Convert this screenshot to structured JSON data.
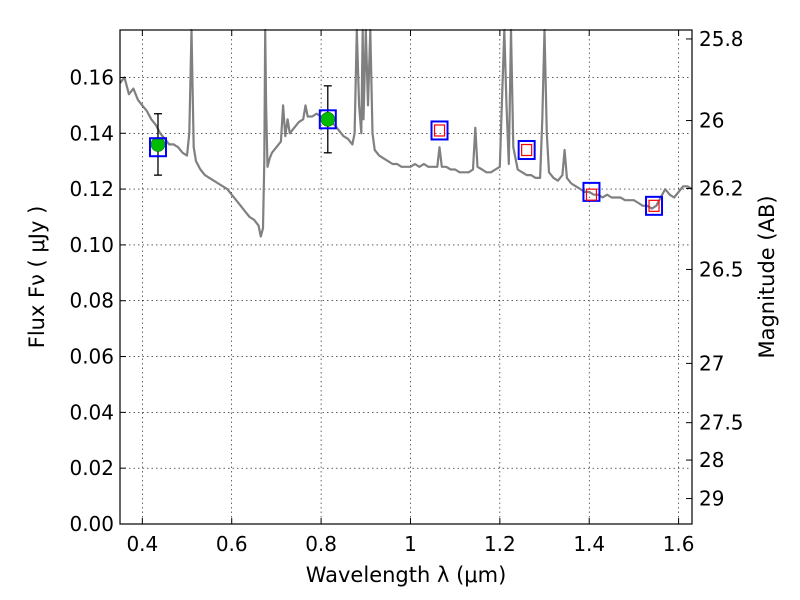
{
  "chart_data": {
    "type": "line",
    "title": "",
    "xlabel": "Wavelength  λ (μm)",
    "ylabel": "Flux  Fν  ( μJy )",
    "y2label": "Magnitude (AB)",
    "xlim": [
      0.35,
      1.63
    ],
    "ylim": [
      0.0,
      0.177
    ],
    "grid": true,
    "xticks": [
      "0.4",
      "0.6",
      "0.8",
      "1",
      "1.2",
      "1.4",
      "1.6"
    ],
    "xtick_values": [
      0.4,
      0.6,
      0.8,
      1.0,
      1.2,
      1.4,
      1.6
    ],
    "yticks": [
      "0.00",
      "0.02",
      "0.04",
      "0.06",
      "0.08",
      "0.10",
      "0.12",
      "0.14",
      "0.16"
    ],
    "ytick_values": [
      0.0,
      0.02,
      0.04,
      0.06,
      0.08,
      0.1,
      0.12,
      0.14,
      0.16
    ],
    "y2ticks": [
      {
        "label": "25.8",
        "value": 25.8
      },
      {
        "label": "26",
        "value": 26.0
      },
      {
        "label": "26.2",
        "value": 26.2
      },
      {
        "label": "26.5",
        "value": 26.5
      },
      {
        "label": "27",
        "value": 27.0
      },
      {
        "label": "27.5",
        "value": 27.5
      },
      {
        "label": "28",
        "value": 28.0
      },
      {
        "label": "29",
        "value": 29.0
      }
    ],
    "series": [
      {
        "kind": "spectrum",
        "color": "#808080",
        "x": [
          0.35,
          0.36,
          0.37,
          0.38,
          0.39,
          0.4,
          0.41,
          0.42,
          0.43,
          0.44,
          0.45,
          0.46,
          0.47,
          0.48,
          0.49,
          0.5,
          0.505,
          0.51,
          0.515,
          0.52,
          0.53,
          0.54,
          0.55,
          0.56,
          0.57,
          0.58,
          0.59,
          0.6,
          0.61,
          0.62,
          0.63,
          0.64,
          0.65,
          0.66,
          0.665,
          0.67,
          0.673,
          0.675,
          0.677,
          0.68,
          0.685,
          0.69,
          0.7,
          0.71,
          0.715,
          0.72,
          0.725,
          0.73,
          0.74,
          0.75,
          0.76,
          0.765,
          0.77,
          0.78,
          0.79,
          0.8,
          0.81,
          0.82,
          0.83,
          0.84,
          0.85,
          0.86,
          0.87,
          0.875,
          0.88,
          0.885,
          0.89,
          0.893,
          0.895,
          0.9,
          0.905,
          0.91,
          0.915,
          0.92,
          0.93,
          0.94,
          0.95,
          0.96,
          0.97,
          0.98,
          0.99,
          1.0,
          1.01,
          1.02,
          1.03,
          1.04,
          1.05,
          1.06,
          1.065,
          1.07,
          1.08,
          1.09,
          1.1,
          1.11,
          1.12,
          1.13,
          1.14,
          1.145,
          1.15,
          1.16,
          1.17,
          1.18,
          1.19,
          1.2,
          1.21,
          1.215,
          1.22,
          1.225,
          1.23,
          1.24,
          1.25,
          1.26,
          1.27,
          1.28,
          1.29,
          1.295,
          1.3,
          1.305,
          1.31,
          1.32,
          1.33,
          1.34,
          1.345,
          1.35,
          1.36,
          1.37,
          1.38,
          1.39,
          1.4,
          1.41,
          1.42,
          1.43,
          1.44,
          1.45,
          1.46,
          1.47,
          1.48,
          1.49,
          1.5,
          1.51,
          1.52,
          1.53,
          1.54,
          1.55,
          1.56,
          1.57,
          1.58,
          1.59,
          1.6,
          1.61,
          1.62,
          1.63
        ],
        "y": [
          0.158,
          0.16,
          0.154,
          0.156,
          0.152,
          0.15,
          0.148,
          0.145,
          0.143,
          0.14,
          0.138,
          0.136,
          0.136,
          0.135,
          0.133,
          0.132,
          0.14,
          0.177,
          0.135,
          0.13,
          0.127,
          0.125,
          0.124,
          0.123,
          0.122,
          0.121,
          0.12,
          0.118,
          0.116,
          0.114,
          0.112,
          0.11,
          0.109,
          0.107,
          0.103,
          0.106,
          0.13,
          0.177,
          0.15,
          0.128,
          0.131,
          0.133,
          0.135,
          0.137,
          0.15,
          0.139,
          0.145,
          0.14,
          0.142,
          0.144,
          0.145,
          0.15,
          0.146,
          0.146,
          0.147,
          0.146,
          0.145,
          0.144,
          0.143,
          0.141,
          0.139,
          0.138,
          0.136,
          0.14,
          0.177,
          0.15,
          0.14,
          0.177,
          0.145,
          0.177,
          0.15,
          0.177,
          0.14,
          0.134,
          0.132,
          0.131,
          0.13,
          0.129,
          0.129,
          0.128,
          0.128,
          0.128,
          0.129,
          0.128,
          0.129,
          0.128,
          0.128,
          0.128,
          0.135,
          0.128,
          0.128,
          0.127,
          0.127,
          0.126,
          0.126,
          0.126,
          0.127,
          0.142,
          0.128,
          0.127,
          0.126,
          0.126,
          0.127,
          0.128,
          0.177,
          0.15,
          0.129,
          0.177,
          0.135,
          0.127,
          0.126,
          0.125,
          0.125,
          0.124,
          0.124,
          0.145,
          0.177,
          0.14,
          0.126,
          0.124,
          0.123,
          0.125,
          0.134,
          0.124,
          0.122,
          0.121,
          0.12,
          0.119,
          0.119,
          0.118,
          0.118,
          0.117,
          0.118,
          0.117,
          0.117,
          0.117,
          0.116,
          0.116,
          0.116,
          0.115,
          0.114,
          0.114,
          0.113,
          0.114,
          0.117,
          0.12,
          0.118,
          0.117,
          0.119,
          0.121,
          0.121,
          0.12
        ]
      },
      {
        "kind": "photometry",
        "marker": "circle",
        "color": "#00bb00",
        "x": [
          0.435,
          0.815
        ],
        "y": [
          0.136,
          0.145
        ],
        "yerr": [
          0.011,
          0.012
        ]
      },
      {
        "kind": "model_boxes",
        "marker": "square",
        "color": "#0000ff",
        "x": [
          0.435,
          0.815,
          1.065,
          1.26,
          1.405,
          1.545
        ],
        "y": [
          0.135,
          0.145,
          0.141,
          0.134,
          0.119,
          0.114
        ]
      },
      {
        "kind": "observed_boxes",
        "marker": "square",
        "color": "#ff0000",
        "x": [
          1.065,
          1.26,
          1.405,
          1.545
        ],
        "y": [
          0.141,
          0.134,
          0.118,
          0.114
        ]
      }
    ]
  }
}
